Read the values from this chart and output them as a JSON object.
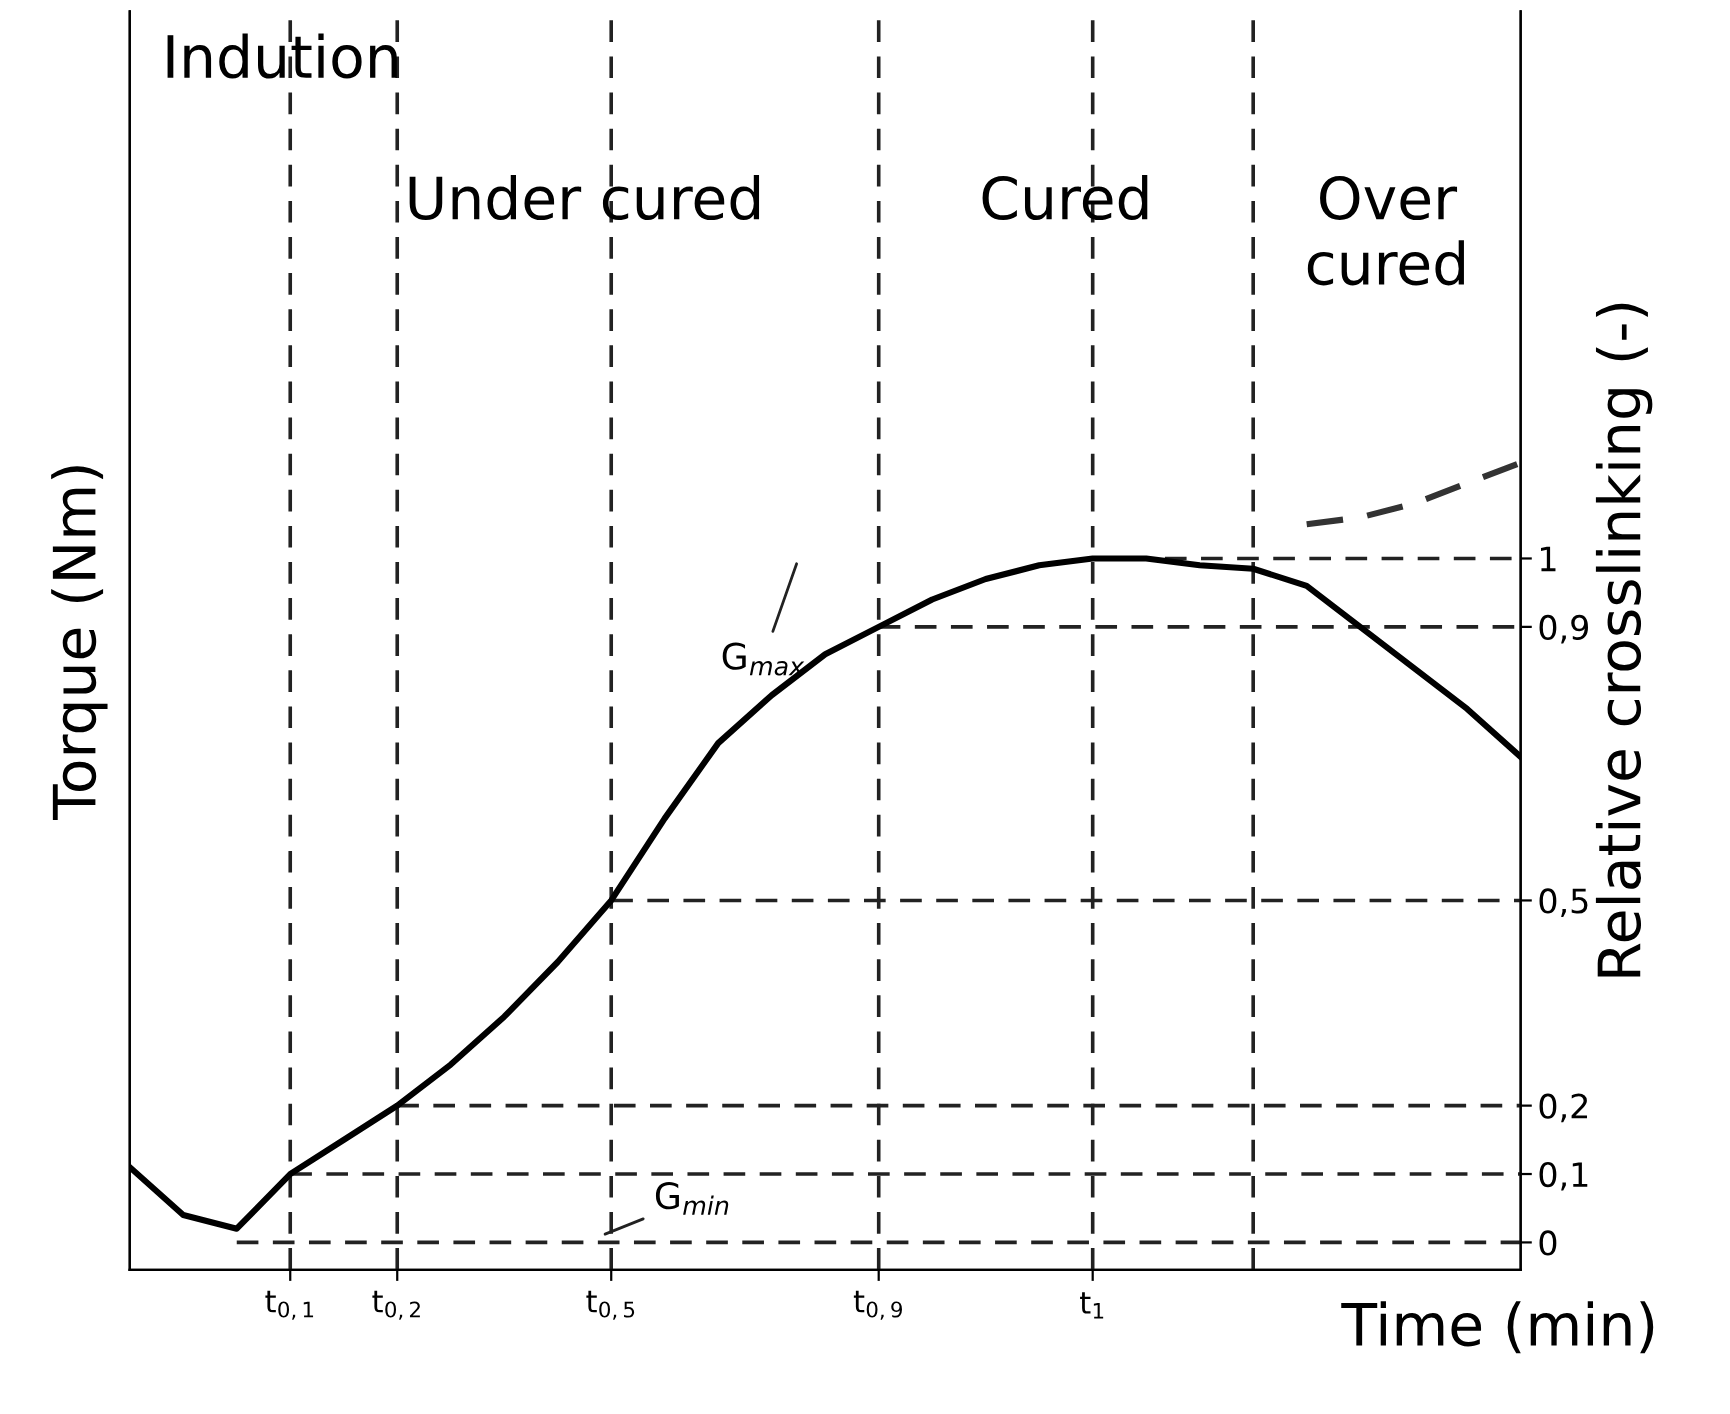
{
  "chart_data": {
    "type": "line",
    "xlabel": "Time (min)",
    "ylabel": "Torque (Nm)",
    "y2label": "Relative crosslinking (-)",
    "categories": [
      null,
      null,
      null,
      "t$_{0,1}$",
      null,
      "t$_{0,2}$",
      null,
      null,
      null,
      "t$_{0,5}$",
      null,
      null,
      null,
      null,
      "t$_{0,9}$",
      null,
      null,
      null,
      "t$_{1}$",
      null,
      null,
      null,
      null,
      null,
      null,
      null,
      null
    ],
    "y2lim": [
      -0.04,
      1.8
    ],
    "y2ticks": [
      {
        "value": 0,
        "label": "0"
      },
      {
        "value": 0.1,
        "label": "0,1"
      },
      {
        "value": 0.2,
        "label": "0,2"
      },
      {
        "value": 0.5,
        "label": "0,5"
      },
      {
        "value": 0.9,
        "label": "0,9"
      },
      {
        "value": 1,
        "label": "1"
      }
    ],
    "series": [
      {
        "axis": "y2",
        "color": "#000000",
        "line_style": "solid",
        "values": [
          0.11,
          0.04,
          0.02,
          0.1,
          0.15,
          0.2,
          0.26,
          0.33,
          0.41,
          0.5,
          0.62,
          0.73,
          0.8,
          0.86,
          0.9,
          0.94,
          0.97,
          0.99,
          1.0,
          1.0,
          0.99,
          0.985,
          0.96,
          0.9,
          0.84,
          0.78,
          0.71
        ]
      },
      {
        "axis": "y2",
        "color": "#333333",
        "line_style": "dashed",
        "values": [
          null,
          null,
          null,
          null,
          null,
          null,
          null,
          null,
          null,
          null,
          null,
          null,
          null,
          null,
          null,
          null,
          null,
          null,
          null,
          null,
          null,
          null,
          1.05,
          1.06,
          1.08,
          1.11,
          1.14
        ]
      }
    ],
    "ref_lines": [
      {
        "axis": "y2",
        "value": 0,
        "color": "#222222",
        "line_style": "dashed"
      },
      {
        "axis": "y2",
        "value": 0.1,
        "color": "#222222",
        "line_style": "dashed"
      },
      {
        "axis": "y2",
        "value": 0.2,
        "color": "#222222",
        "line_style": "dashed"
      },
      {
        "axis": "y2",
        "value": 0.5,
        "color": "#222222",
        "line_style": "dashed"
      },
      {
        "axis": "y2",
        "value": 0.9,
        "color": "#222222",
        "line_style": "dashed"
      },
      {
        "axis": "y2",
        "value": 1,
        "color": "#222222",
        "line_style": "dashed"
      }
    ],
    "annotations": [
      "Indution",
      "Under cured",
      "Cured",
      "Over\ncured",
      "G$_{max}$",
      "G$_{min}$"
    ],
    "grid": "x",
    "marker": "none"
  }
}
